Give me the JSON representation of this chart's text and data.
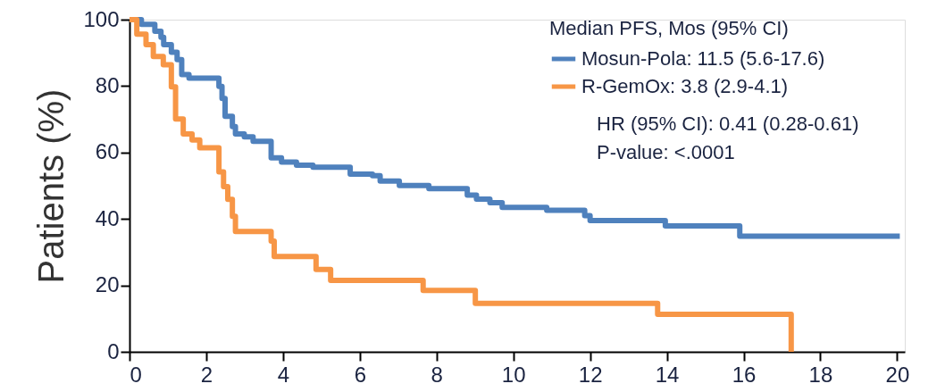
{
  "chart_data": {
    "type": "step",
    "ylabel": "Patients (%)",
    "legend_title": "Median PFS, Mos (95% CI)",
    "xlim": [
      0,
      20.2
    ],
    "xticks": [
      0,
      2,
      4,
      6,
      8,
      10,
      12,
      14,
      16,
      18,
      20
    ],
    "ylim": [
      0,
      100
    ],
    "yticks": [
      0,
      20,
      40,
      60,
      80,
      100
    ],
    "grid": false,
    "legend": "top right",
    "marker": "none",
    "line_style": "solid",
    "annotations": [
      "HR (95% CI): 0.41 (0.28-0.61)",
      "P-value: <.0001"
    ],
    "series": [
      {
        "name": "Mosun-Pola: 11.5 (5.6-17.6)",
        "color": "#4f81bd",
        "x": [
          0,
          0.31,
          0.66,
          0.82,
          0.89,
          1.09,
          1.24,
          1.36,
          1.55,
          2.33,
          2.41,
          2.49,
          2.68,
          2.76,
          2.99,
          3.22,
          3.69,
          3.96,
          4.35,
          4.78,
          5.75,
          6.33,
          6.53,
          7.03,
          7.8,
          8.8,
          9.04,
          9.39,
          9.71,
          10.87,
          11.86,
          12.0,
          13.96,
          15.9,
          20.07
        ],
        "values": [
          100,
          98.6,
          96.5,
          94.7,
          92.5,
          90.2,
          88,
          83.5,
          82.4,
          79.9,
          76.3,
          70.9,
          67.8,
          65.6,
          64.7,
          63.4,
          58.4,
          57.1,
          56.2,
          55.6,
          53.5,
          53.0,
          51.4,
          50.1,
          49.1,
          47.2,
          46.0,
          44.9,
          43.5,
          42.6,
          41.0,
          39.5,
          37.9,
          34.8,
          34.8
        ]
      },
      {
        "name": "R-GemOx: 3.8 (2.9-4.1)",
        "color": "#f79646",
        "x": [
          0,
          0.19,
          0.43,
          0.62,
          0.88,
          1.09,
          1.2,
          1.4,
          1.63,
          1.83,
          2.33,
          2.45,
          2.56,
          2.68,
          2.76,
          3.69,
          3.77,
          4.86,
          5.24,
          7.65,
          9.01,
          13.76,
          17.24
        ],
        "values": [
          100,
          95.6,
          92.5,
          88.9,
          86.4,
          79.8,
          70.1,
          65.6,
          63.8,
          61.4,
          54.2,
          49.7,
          45.9,
          40.8,
          36.2,
          33.3,
          28.7,
          24.8,
          21.5,
          18.5,
          14.6,
          11.3,
          0
        ]
      }
    ]
  }
}
